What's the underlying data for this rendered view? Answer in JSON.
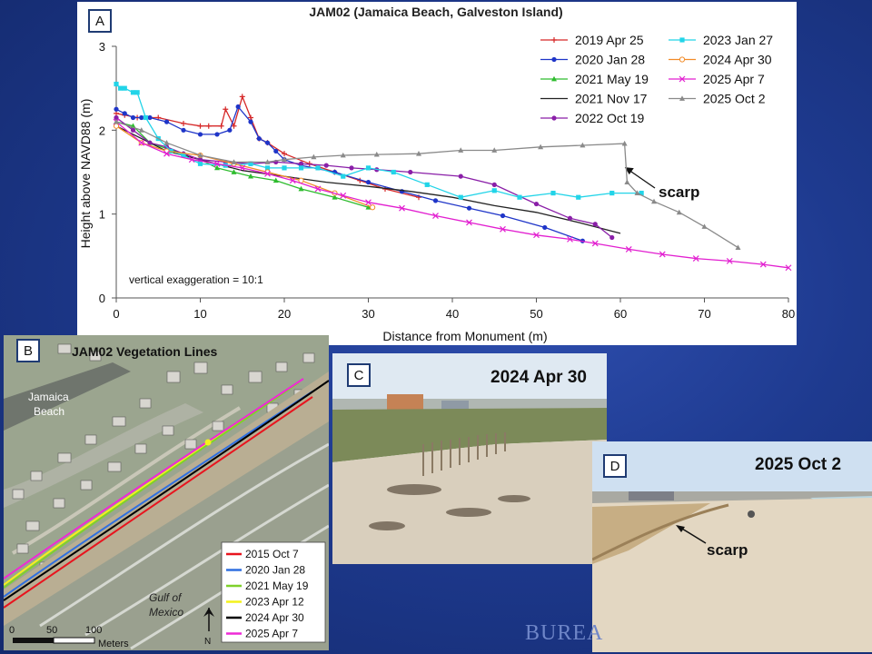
{
  "panels": {
    "a": {
      "label": "A"
    },
    "b": {
      "label": "B",
      "title": "JAM02 Vegetation Lines",
      "place": "Jamaica\nBeach",
      "place_line1": "Jamaica",
      "place_line2": "Beach",
      "water_line1": "Gulf of",
      "water_line2": "Mexico",
      "north": "N",
      "scale": {
        "ticks": [
          "0",
          "50",
          "100"
        ],
        "unit": "Meters"
      },
      "legend": [
        {
          "label": "2015 Oct 7",
          "color": "#e8141e"
        },
        {
          "label": "2020 Jan 28",
          "color": "#2f6fe0"
        },
        {
          "label": "2021 May 19",
          "color": "#7fd12b"
        },
        {
          "label": "2023 Apr 12",
          "color": "#f4f21c"
        },
        {
          "label": "2024 Apr 30",
          "color": "#000000"
        },
        {
          "label": "2025 Apr 7",
          "color": "#ee2ad6"
        }
      ]
    },
    "c": {
      "label": "C",
      "date": "2024 Apr 30"
    },
    "d": {
      "label": "D",
      "date": "2025 Oct 2",
      "annotation": "scarp"
    }
  },
  "watermark": "BUREA",
  "chart_data": {
    "type": "line",
    "title": "JAM02 (Jamaica Beach, Galveston Island)",
    "xlabel": "Distance from Monument (m)",
    "ylabel": "Height above NAVD88 (m)",
    "xlim": [
      0,
      80
    ],
    "ylim": [
      0,
      3
    ],
    "xticks": [
      0,
      10,
      20,
      30,
      40,
      50,
      60,
      70,
      80
    ],
    "yticks": [
      0,
      1,
      2,
      3
    ],
    "note": "vertical exaggeration = 10:1",
    "annotation": {
      "text": "scarp",
      "points_to": [
        60.3,
        1.58
      ]
    },
    "series": [
      {
        "name": "2019 Apr 25",
        "color": "#d62828",
        "marker": "plus",
        "points": [
          [
            0,
            2.2
          ],
          [
            1,
            2.18
          ],
          [
            2.5,
            2.15
          ],
          [
            5,
            2.15
          ],
          [
            8,
            2.08
          ],
          [
            10,
            2.05
          ],
          [
            11,
            2.05
          ],
          [
            12.5,
            2.05
          ],
          [
            13,
            2.25
          ],
          [
            14,
            2.05
          ],
          [
            15,
            2.4
          ],
          [
            16,
            2.15
          ],
          [
            17,
            1.9
          ],
          [
            18,
            1.85
          ],
          [
            20,
            1.72
          ],
          [
            23,
            1.6
          ],
          [
            26,
            1.5
          ],
          [
            29,
            1.4
          ],
          [
            32,
            1.3
          ],
          [
            36,
            1.2
          ]
        ]
      },
      {
        "name": "2020 Jan 28",
        "color": "#1f35c8",
        "marker": "dot",
        "points": [
          [
            0,
            2.25
          ],
          [
            1,
            2.2
          ],
          [
            2,
            2.15
          ],
          [
            3,
            2.15
          ],
          [
            4,
            2.15
          ],
          [
            6,
            2.1
          ],
          [
            8,
            2.0
          ],
          [
            10,
            1.95
          ],
          [
            12,
            1.95
          ],
          [
            13.5,
            2.0
          ],
          [
            14.5,
            2.28
          ],
          [
            16,
            2.1
          ],
          [
            17,
            1.9
          ],
          [
            18,
            1.85
          ],
          [
            19,
            1.75
          ],
          [
            20,
            1.65
          ],
          [
            22,
            1.58
          ],
          [
            26,
            1.5
          ],
          [
            30,
            1.38
          ],
          [
            34,
            1.27
          ],
          [
            38,
            1.16
          ],
          [
            42,
            1.07
          ],
          [
            46,
            0.98
          ],
          [
            51,
            0.84
          ],
          [
            55.5,
            0.68
          ]
        ]
      },
      {
        "name": "2021 May 19",
        "color": "#2ebc2e",
        "marker": "triangle",
        "points": [
          [
            0,
            2.1
          ],
          [
            2,
            2.05
          ],
          [
            4,
            1.85
          ],
          [
            6,
            1.78
          ],
          [
            8,
            1.72
          ],
          [
            10,
            1.65
          ],
          [
            12,
            1.55
          ],
          [
            14,
            1.5
          ],
          [
            16,
            1.45
          ],
          [
            19,
            1.4
          ],
          [
            22,
            1.3
          ],
          [
            26,
            1.2
          ],
          [
            30,
            1.08
          ]
        ]
      },
      {
        "name": "2021 Nov 17",
        "color": "#222222",
        "marker": "none",
        "points": [
          [
            0,
            2.05
          ],
          [
            3,
            1.9
          ],
          [
            6,
            1.75
          ],
          [
            10,
            1.65
          ],
          [
            15,
            1.52
          ],
          [
            20,
            1.45
          ],
          [
            25,
            1.38
          ],
          [
            30,
            1.33
          ],
          [
            35,
            1.27
          ],
          [
            40,
            1.2
          ],
          [
            45,
            1.1
          ],
          [
            50,
            1.02
          ],
          [
            55,
            0.9
          ],
          [
            60,
            0.77
          ]
        ]
      },
      {
        "name": "2022 Oct 19",
        "color": "#8a1fa8",
        "marker": "dot",
        "points": [
          [
            0,
            2.15
          ],
          [
            2,
            2.0
          ],
          [
            4,
            1.85
          ],
          [
            6,
            1.8
          ],
          [
            8,
            1.72
          ],
          [
            10,
            1.65
          ],
          [
            13,
            1.62
          ],
          [
            16,
            1.6
          ],
          [
            19,
            1.62
          ],
          [
            22,
            1.6
          ],
          [
            25,
            1.58
          ],
          [
            28,
            1.55
          ],
          [
            31,
            1.53
          ],
          [
            35,
            1.5
          ],
          [
            41,
            1.45
          ],
          [
            45,
            1.35
          ],
          [
            50,
            1.12
          ],
          [
            54,
            0.95
          ],
          [
            57,
            0.88
          ],
          [
            59,
            0.72
          ]
        ]
      },
      {
        "name": "2023 Jan 27",
        "color": "#22d4e8",
        "marker": "square",
        "points": [
          [
            0,
            2.55
          ],
          [
            0.5,
            2.5
          ],
          [
            1,
            2.5
          ],
          [
            2,
            2.45
          ],
          [
            2.5,
            2.45
          ],
          [
            3.5,
            2.15
          ],
          [
            5,
            1.9
          ],
          [
            6.5,
            1.75
          ],
          [
            8,
            1.7
          ],
          [
            10,
            1.6
          ],
          [
            13,
            1.58
          ],
          [
            16,
            1.6
          ],
          [
            18,
            1.55
          ],
          [
            20,
            1.55
          ],
          [
            22,
            1.55
          ],
          [
            24,
            1.55
          ],
          [
            27,
            1.45
          ],
          [
            30,
            1.55
          ],
          [
            33,
            1.5
          ],
          [
            37,
            1.35
          ],
          [
            41,
            1.2
          ],
          [
            45,
            1.28
          ],
          [
            48,
            1.2
          ],
          [
            52,
            1.25
          ],
          [
            55,
            1.2
          ],
          [
            59,
            1.25
          ],
          [
            62.5,
            1.25
          ]
        ]
      },
      {
        "name": "2024 Apr 30",
        "color": "#f28c28",
        "marker": "circle",
        "points": [
          [
            0,
            2.05
          ],
          [
            3,
            1.85
          ],
          [
            6,
            1.75
          ],
          [
            10,
            1.7
          ],
          [
            14,
            1.6
          ],
          [
            18,
            1.5
          ],
          [
            22,
            1.4
          ],
          [
            26,
            1.25
          ],
          [
            30.5,
            1.08
          ]
        ]
      },
      {
        "name": "2025 Apr 7",
        "color": "#e21fd0",
        "marker": "x",
        "points": [
          [
            0,
            2.1
          ],
          [
            3,
            1.85
          ],
          [
            6,
            1.72
          ],
          [
            9,
            1.65
          ],
          [
            12,
            1.6
          ],
          [
            15,
            1.55
          ],
          [
            18,
            1.48
          ],
          [
            21,
            1.4
          ],
          [
            24,
            1.3
          ],
          [
            27,
            1.22
          ],
          [
            30,
            1.14
          ],
          [
            34,
            1.07
          ],
          [
            38,
            0.98
          ],
          [
            42,
            0.9
          ],
          [
            46,
            0.82
          ],
          [
            50,
            0.75
          ],
          [
            54,
            0.7
          ],
          [
            57,
            0.65
          ],
          [
            61,
            0.58
          ],
          [
            65,
            0.52
          ],
          [
            69,
            0.47
          ],
          [
            73,
            0.44
          ],
          [
            77,
            0.4
          ],
          [
            80,
            0.36
          ]
        ]
      },
      {
        "name": "2025 Oct 2",
        "color": "#8a8a8a",
        "marker": "triangle",
        "points": [
          [
            0,
            2.1
          ],
          [
            3,
            2.0
          ],
          [
            6,
            1.85
          ],
          [
            10,
            1.7
          ],
          [
            14,
            1.62
          ],
          [
            18,
            1.62
          ],
          [
            20,
            1.65
          ],
          [
            23.5,
            1.68
          ],
          [
            27,
            1.7
          ],
          [
            31,
            1.71
          ],
          [
            36,
            1.72
          ],
          [
            41,
            1.76
          ],
          [
            45,
            1.76
          ],
          [
            50.5,
            1.8
          ],
          [
            55.5,
            1.82
          ],
          [
            60.5,
            1.84
          ],
          [
            60.8,
            1.38
          ],
          [
            62,
            1.25
          ],
          [
            64,
            1.15
          ],
          [
            67,
            1.02
          ],
          [
            70,
            0.85
          ],
          [
            74,
            0.6
          ]
        ]
      }
    ]
  }
}
